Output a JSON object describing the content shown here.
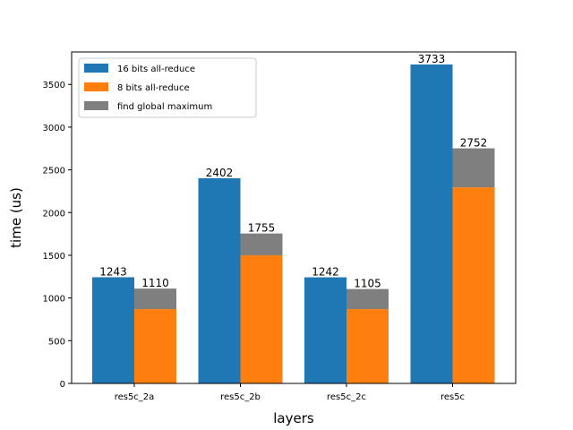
{
  "chart_data": {
    "type": "bar",
    "categories": [
      "res5c_2a",
      "res5c_2b",
      "res5c_2c",
      "res5c"
    ],
    "xlabel": "layers",
    "ylabel": "time (us)",
    "ylim": [
      0,
      3880
    ],
    "yticks": [
      0,
      500,
      1000,
      1500,
      2000,
      2500,
      3000,
      3500
    ],
    "legend_position": "top-left",
    "series": [
      {
        "name": "16 bits all-reduce",
        "values": [
          1243,
          2402,
          1242,
          3733
        ],
        "color": "#1f77b4",
        "group": 0
      },
      {
        "name": "8 bits all-reduce",
        "values": [
          870,
          1500,
          870,
          2295
        ],
        "color": "#ff7f0e",
        "group": 1
      },
      {
        "name": "find global maximum",
        "values": [
          240,
          255,
          235,
          457
        ],
        "color": "#7f7f7f",
        "group": 1,
        "stacked_on": "8 bits all-reduce"
      }
    ],
    "data_labels": [
      [
        "1243",
        "1110"
      ],
      [
        "2402",
        "1755"
      ],
      [
        "1242",
        "1105"
      ],
      [
        "3733",
        "2752"
      ]
    ]
  }
}
